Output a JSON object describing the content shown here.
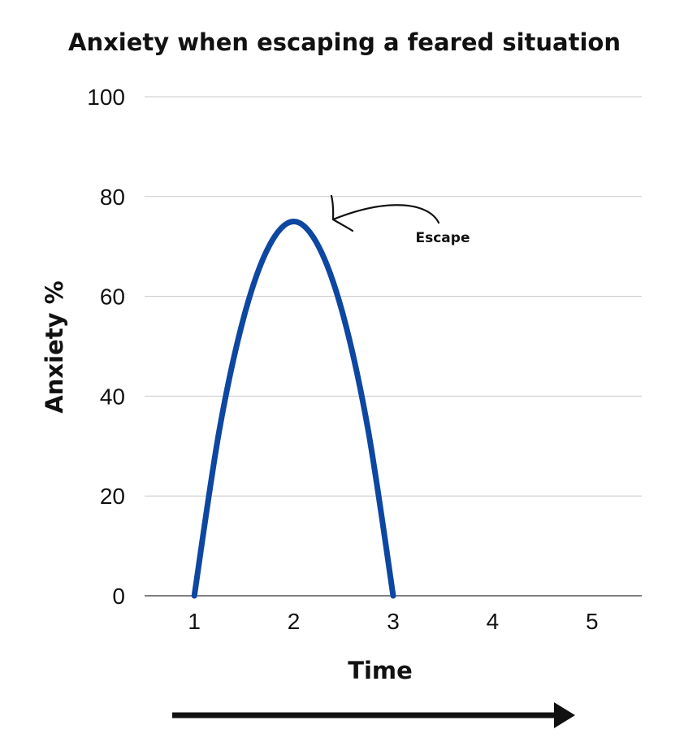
{
  "chart_data": {
    "type": "line",
    "title": "Anxiety when escaping a feared situation",
    "xlabel": "Time",
    "ylabel": "Anxiety %",
    "x_ticks": [
      "1",
      "2",
      "3",
      "4",
      "5"
    ],
    "y_ticks": [
      "0",
      "20",
      "40",
      "60",
      "80",
      "100"
    ],
    "xlim": [
      0.5,
      5.5
    ],
    "ylim": [
      0,
      100
    ],
    "grid": true,
    "series": [
      {
        "color": "#0d47a1",
        "x": [
          1,
          1.25,
          1.5,
          1.75,
          2,
          2.25,
          2.5,
          2.75,
          3
        ],
        "y": [
          0,
          33,
          56,
          70,
          75,
          70,
          56,
          33,
          0
        ]
      }
    ],
    "annotations": [
      {
        "text": "Escape",
        "x": 2,
        "y": 75
      }
    ]
  },
  "colors": {
    "line": "#0d47a1",
    "grid": "#c8c8c8",
    "axis": "#555555",
    "text": "#111111"
  }
}
